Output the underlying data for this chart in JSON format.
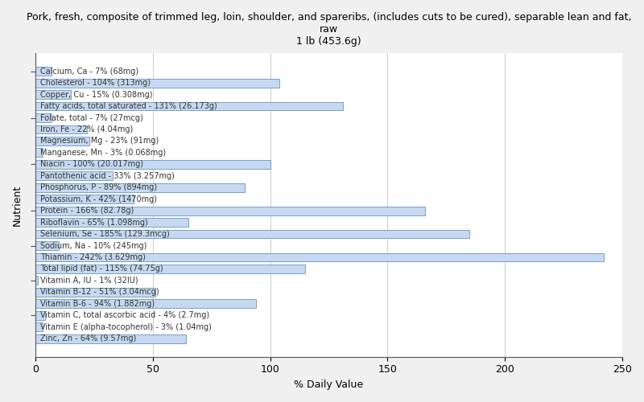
{
  "title": "Pork, fresh, composite of trimmed leg, loin, shoulder, and spareribs, (includes cuts to be cured), separable lean and fat,\nraw\n1 lb (453.6g)",
  "xlabel": "% Daily Value",
  "ylabel": "Nutrient",
  "xlim": [
    0,
    250
  ],
  "nutrients": [
    {
      "label": "Calcium, Ca - 7% (68mg)",
      "value": 7
    },
    {
      "label": "Cholesterol - 104% (313mg)",
      "value": 104
    },
    {
      "label": "Copper, Cu - 15% (0.308mg)",
      "value": 15
    },
    {
      "label": "Fatty acids, total saturated - 131% (26.173g)",
      "value": 131
    },
    {
      "label": "Folate, total - 7% (27mcg)",
      "value": 7
    },
    {
      "label": "Iron, Fe - 22% (4.04mg)",
      "value": 22
    },
    {
      "label": "Magnesium, Mg - 23% (91mg)",
      "value": 23
    },
    {
      "label": "Manganese, Mn - 3% (0.068mg)",
      "value": 3
    },
    {
      "label": "Niacin - 100% (20.017mg)",
      "value": 100
    },
    {
      "label": "Pantothenic acid - 33% (3.257mg)",
      "value": 33
    },
    {
      "label": "Phosphorus, P - 89% (894mg)",
      "value": 89
    },
    {
      "label": "Potassium, K - 42% (1470mg)",
      "value": 42
    },
    {
      "label": "Protein - 166% (82.78g)",
      "value": 166
    },
    {
      "label": "Riboflavin - 65% (1.098mg)",
      "value": 65
    },
    {
      "label": "Selenium, Se - 185% (129.3mcg)",
      "value": 185
    },
    {
      "label": "Sodium, Na - 10% (245mg)",
      "value": 10
    },
    {
      "label": "Thiamin - 242% (3.629mg)",
      "value": 242
    },
    {
      "label": "Total lipid (fat) - 115% (74.75g)",
      "value": 115
    },
    {
      "label": "Vitamin A, IU - 1% (32IU)",
      "value": 1
    },
    {
      "label": "Vitamin B-12 - 51% (3.04mcg)",
      "value": 51
    },
    {
      "label": "Vitamin B-6 - 94% (1.882mg)",
      "value": 94
    },
    {
      "label": "Vitamin C, total ascorbic acid - 4% (2.7mg)",
      "value": 4
    },
    {
      "label": "Vitamin E (alpha-tocopherol) - 3% (1.04mg)",
      "value": 3
    },
    {
      "label": "Zinc, Zn - 64% (9.57mg)",
      "value": 64
    }
  ],
  "bar_color": "#c6d9f0",
  "bar_edge_color": "#4f81bd",
  "bg_color": "#f0f0f0",
  "plot_bg_color": "#ffffff",
  "title_fontsize": 9,
  "axis_label_fontsize": 9,
  "bar_label_fontsize": 7,
  "tick_fontsize": 9,
  "ytick_groups": [
    0,
    4,
    8,
    12,
    15,
    18,
    21
  ]
}
